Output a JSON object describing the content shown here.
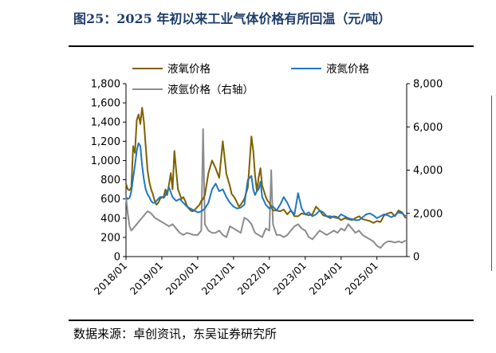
{
  "header": {
    "title": "图25：2025 年初以来工业气体价格有所回温（元/吨）"
  },
  "footer": {
    "source": "数据来源：卓创资讯，东吴证券研究所"
  },
  "chart_data": {
    "type": "line",
    "title": "",
    "xlabel": "",
    "ylabel": "",
    "ylim_left": [
      0,
      1800
    ],
    "ylim_right": [
      0,
      8000
    ],
    "yticks_left": [
      "0",
      "200",
      "400",
      "600",
      "800",
      "1,000",
      "1,200",
      "1,400",
      "1,600",
      "1,800"
    ],
    "yticks_right": [
      "0",
      "2,000",
      "4,000",
      "6,000",
      "8,000"
    ],
    "xticks": [
      "2018/01",
      "2019/01",
      "2020/01",
      "2021/01",
      "2022/01",
      "2023/01",
      "2024/01",
      "2025/01"
    ],
    "xlim": [
      2018.0,
      2025.83
    ],
    "grid": false,
    "legend": "top",
    "series": [
      {
        "name": "液氧价格",
        "color": "#7f6000",
        "axis": "left",
        "x": [
          2018.0,
          2018.05,
          2018.1,
          2018.15,
          2018.2,
          2018.25,
          2018.3,
          2018.35,
          2018.4,
          2018.45,
          2018.5,
          2018.55,
          2018.6,
          2018.65,
          2018.7,
          2018.75,
          2018.8,
          2018.85,
          2018.9,
          2018.95,
          2019.0,
          2019.05,
          2019.1,
          2019.15,
          2019.2,
          2019.25,
          2019.3,
          2019.35,
          2019.4,
          2019.45,
          2019.5,
          2019.55,
          2019.6,
          2019.65,
          2019.7,
          2019.75,
          2019.8,
          2019.85,
          2019.9,
          2019.95,
          2020.0,
          2020.05,
          2020.1,
          2020.15,
          2020.2,
          2020.3,
          2020.4,
          2020.5,
          2020.6,
          2020.7,
          2020.8,
          2020.9,
          2020.95,
          2021.0,
          2021.05,
          2021.1,
          2021.15,
          2021.2,
          2021.3,
          2021.4,
          2021.5,
          2021.55,
          2021.6,
          2021.65,
          2021.7,
          2021.75,
          2021.8,
          2021.85,
          2021.9,
          2021.95,
          2022.0,
          2022.05,
          2022.1,
          2022.2,
          2022.3,
          2022.4,
          2022.5,
          2022.6,
          2022.7,
          2022.8,
          2022.9,
          2023.0,
          2023.1,
          2023.2,
          2023.3,
          2023.4,
          2023.5,
          2023.6,
          2023.7,
          2023.8,
          2023.9,
          2024.0,
          2024.1,
          2024.2,
          2024.3,
          2024.4,
          2024.5,
          2024.6,
          2024.7,
          2024.8,
          2024.9,
          2025.0,
          2025.1,
          2025.2,
          2025.3,
          2025.4,
          2025.5,
          2025.6,
          2025.7,
          2025.8
        ],
        "values": [
          760,
          700,
          690,
          720,
          1150,
          1080,
          1420,
          1480,
          1380,
          1550,
          1400,
          1150,
          900,
          780,
          700,
          650,
          580,
          540,
          560,
          600,
          620,
          620,
          700,
          640,
          750,
          870,
          700,
          1100,
          900,
          700,
          650,
          600,
          620,
          580,
          530,
          500,
          480,
          470,
          480,
          500,
          520,
          540,
          580,
          600,
          640,
          870,
          1000,
          920,
          820,
          1200,
          860,
          730,
          650,
          630,
          600,
          560,
          520,
          540,
          600,
          720,
          1250,
          1100,
          850,
          680,
          820,
          920,
          740,
          680,
          620,
          580,
          560,
          520,
          480,
          480,
          470,
          490,
          440,
          480,
          420,
          420,
          450,
          440,
          430,
          440,
          520,
          480,
          430,
          420,
          400,
          420,
          410,
          380,
          400,
          390,
          380,
          400,
          420,
          390,
          380,
          370,
          350,
          370,
          360,
          430,
          450,
          460,
          420,
          480,
          460,
          400
        ]
      },
      {
        "name": "液氮价格",
        "color": "#1f77c4",
        "axis": "left",
        "x": [
          2018.0,
          2018.05,
          2018.1,
          2018.15,
          2018.2,
          2018.25,
          2018.3,
          2018.35,
          2018.4,
          2018.45,
          2018.5,
          2018.55,
          2018.6,
          2018.65,
          2018.7,
          2018.75,
          2018.8,
          2018.85,
          2018.9,
          2018.95,
          2019.0,
          2019.05,
          2019.1,
          2019.15,
          2019.2,
          2019.3,
          2019.4,
          2019.5,
          2019.6,
          2019.7,
          2019.8,
          2019.9,
          2020.0,
          2020.1,
          2020.2,
          2020.3,
          2020.4,
          2020.5,
          2020.6,
          2020.7,
          2020.8,
          2020.9,
          2021.0,
          2021.1,
          2021.2,
          2021.3,
          2021.4,
          2021.5,
          2021.55,
          2021.6,
          2021.65,
          2021.7,
          2021.75,
          2021.8,
          2021.9,
          2022.0,
          2022.1,
          2022.2,
          2022.3,
          2022.4,
          2022.5,
          2022.6,
          2022.7,
          2022.8,
          2022.9,
          2023.0,
          2023.1,
          2023.2,
          2023.3,
          2023.4,
          2023.5,
          2023.6,
          2023.7,
          2023.8,
          2023.9,
          2024.0,
          2024.1,
          2024.2,
          2024.3,
          2024.4,
          2024.5,
          2024.6,
          2024.7,
          2024.8,
          2024.9,
          2025.0,
          2025.1,
          2025.2,
          2025.3,
          2025.4,
          2025.5,
          2025.6,
          2025.7,
          2025.8
        ],
        "values": [
          620,
          600,
          610,
          680,
          820,
          950,
          1100,
          1180,
          1150,
          950,
          800,
          700,
          650,
          620,
          580,
          560,
          560,
          580,
          600,
          620,
          620,
          610,
          640,
          680,
          720,
          620,
          580,
          600,
          560,
          520,
          500,
          480,
          460,
          470,
          500,
          560,
          700,
          760,
          680,
          700,
          620,
          560,
          520,
          500,
          510,
          540,
          800,
          840,
          700,
          640,
          680,
          700,
          780,
          620,
          540,
          500,
          520,
          480,
          540,
          620,
          560,
          480,
          440,
          660,
          500,
          440,
          460,
          420,
          440,
          480,
          460,
          420,
          420,
          410,
          400,
          440,
          420,
          400,
          390,
          380,
          380,
          410,
          440,
          450,
          430,
          400,
          420,
          440,
          430,
          410,
          430,
          460,
          450,
          420
        ]
      },
      {
        "name": "液氩价格（右轴）",
        "color": "#8c8c8c",
        "axis": "right",
        "x": [
          2018.0,
          2018.05,
          2018.1,
          2018.15,
          2018.2,
          2018.3,
          2018.4,
          2018.5,
          2018.6,
          2018.7,
          2018.8,
          2018.9,
          2019.0,
          2019.1,
          2019.2,
          2019.3,
          2019.4,
          2019.5,
          2019.6,
          2019.7,
          2019.8,
          2019.9,
          2020.0,
          2020.1,
          2020.15,
          2020.2,
          2020.3,
          2020.4,
          2020.5,
          2020.6,
          2020.7,
          2020.8,
          2020.9,
          2021.0,
          2021.1,
          2021.2,
          2021.3,
          2021.4,
          2021.5,
          2021.6,
          2021.7,
          2021.8,
          2021.85,
          2021.9,
          2022.0,
          2022.05,
          2022.1,
          2022.2,
          2022.3,
          2022.4,
          2022.5,
          2022.6,
          2022.7,
          2022.8,
          2022.9,
          2023.0,
          2023.1,
          2023.2,
          2023.3,
          2023.4,
          2023.5,
          2023.6,
          2023.7,
          2023.8,
          2023.9,
          2024.0,
          2024.1,
          2024.2,
          2024.3,
          2024.4,
          2024.5,
          2024.6,
          2024.7,
          2024.8,
          2024.9,
          2025.0,
          2025.1,
          2025.2,
          2025.3,
          2025.4,
          2025.5,
          2025.6,
          2025.7,
          2025.8
        ],
        "values": [
          2800,
          2000,
          1400,
          1200,
          1300,
          1500,
          1700,
          1900,
          2100,
          2000,
          1800,
          1700,
          1600,
          1500,
          1400,
          1500,
          1300,
          1100,
          1000,
          1100,
          1050,
          1000,
          1000,
          1200,
          5900,
          1500,
          1200,
          1100,
          1100,
          1200,
          1000,
          900,
          1400,
          1300,
          1200,
          1100,
          1800,
          1700,
          1500,
          1100,
          1000,
          900,
          1100,
          1300,
          1200,
          4000,
          1500,
          1000,
          1000,
          900,
          1000,
          1200,
          1400,
          1500,
          1300,
          1200,
          900,
          800,
          1000,
          1200,
          1100,
          1000,
          1100,
          1200,
          1100,
          1300,
          1200,
          1500,
          1300,
          1100,
          1200,
          1000,
          900,
          800,
          700,
          500,
          400,
          600,
          700,
          700,
          650,
          700,
          650,
          750
        ]
      }
    ]
  }
}
